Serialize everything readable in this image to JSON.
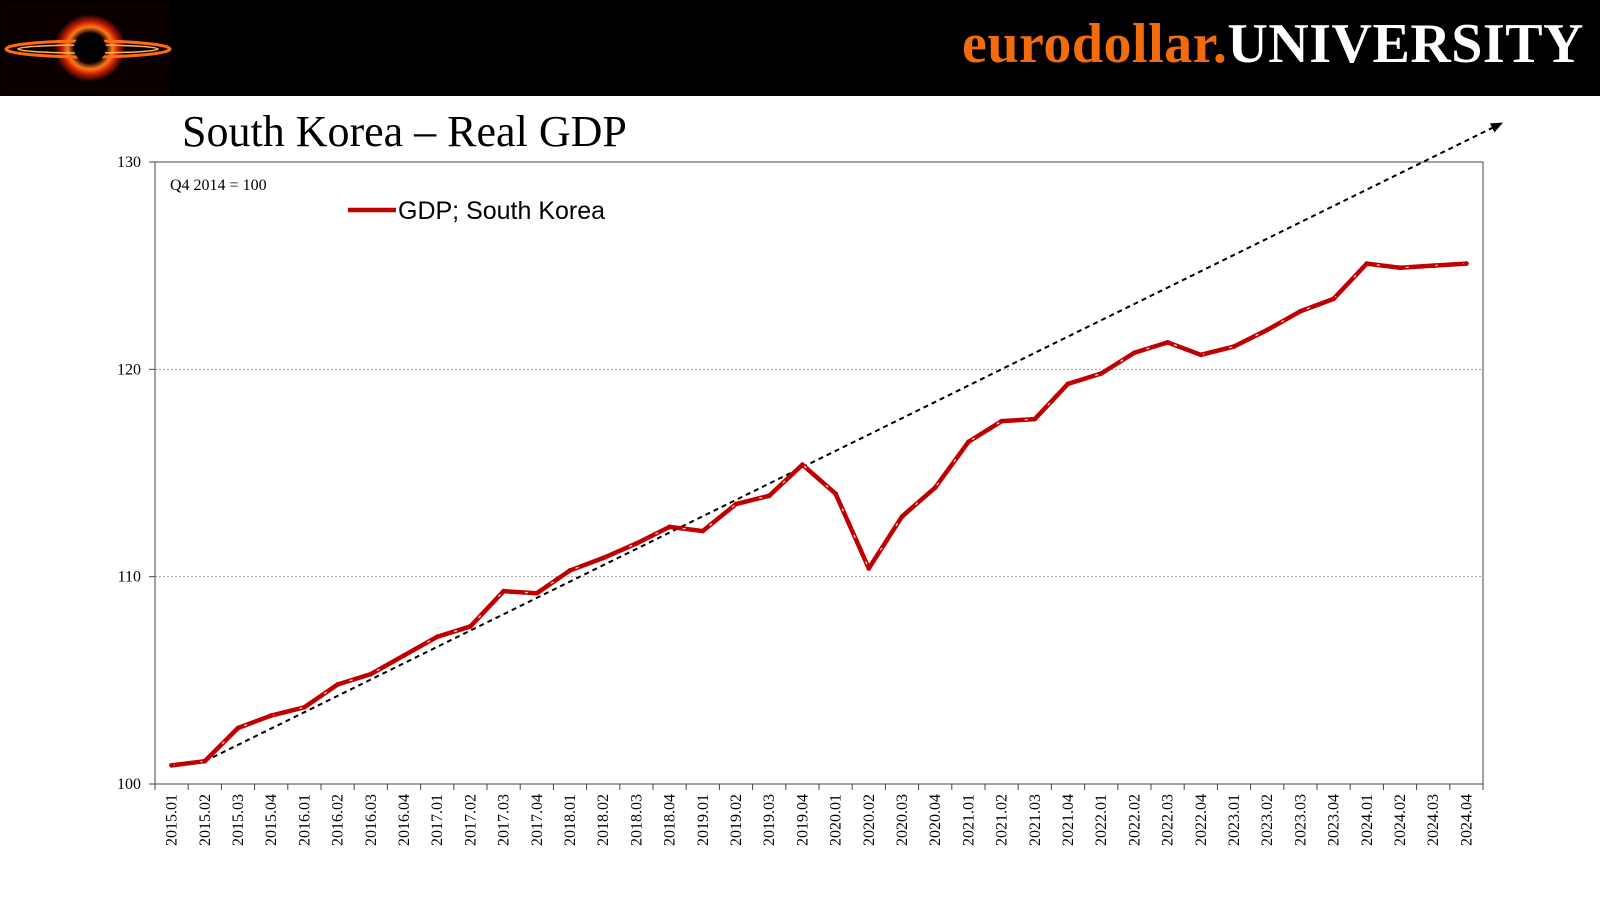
{
  "brand": {
    "part1": "eurodollar.",
    "part2": "UNIVERSITY",
    "accent_color": "#f26c0d"
  },
  "chart_data": {
    "type": "line",
    "title": "South Korea – Real GDP",
    "note": "Q4 2014 = 100",
    "xlabel": "",
    "ylabel": "",
    "ylim": [
      100,
      130
    ],
    "yticks": [
      100,
      110,
      120,
      130
    ],
    "grid": "horizontal",
    "legend_position": "top-left",
    "categories": [
      "2015.01",
      "2015.02",
      "2015.03",
      "2015.04",
      "2016.01",
      "2016.02",
      "2016.03",
      "2016.04",
      "2017.01",
      "2017.02",
      "2017.03",
      "2017.04",
      "2018.01",
      "2018.02",
      "2018.03",
      "2018.04",
      "2019.01",
      "2019.02",
      "2019.03",
      "2019.04",
      "2020.01",
      "2020.02",
      "2020.03",
      "2020.04",
      "2021.01",
      "2021.02",
      "2021.03",
      "2021.04",
      "2022.01",
      "2022.02",
      "2022.03",
      "2022.04",
      "2023.01",
      "2023.02",
      "2023.03",
      "2023.04",
      "2024.01",
      "2024.02",
      "2024.03",
      "2024.04"
    ],
    "series": [
      {
        "name": "GDP; South Korea",
        "color": "#c00000",
        "style": "solid-with-dash-overlay",
        "values": [
          100.9,
          101.1,
          102.7,
          103.3,
          103.7,
          104.8,
          105.3,
          106.2,
          107.1,
          107.6,
          109.3,
          109.2,
          110.3,
          110.9,
          111.6,
          112.4,
          112.2,
          113.5,
          113.9,
          115.4,
          114.0,
          110.4,
          112.9,
          114.3,
          116.5,
          117.5,
          117.6,
          119.3,
          119.8,
          120.8,
          121.3,
          120.7,
          121.1,
          121.9,
          122.8,
          123.4,
          125.1,
          124.9,
          125.0,
          125.1
        ]
      }
    ],
    "trend_line": {
      "style": "dotted-arrow",
      "color": "#000000",
      "start": {
        "category": "2015.02",
        "value": 101.1
      },
      "end_value": 131.9
    }
  }
}
